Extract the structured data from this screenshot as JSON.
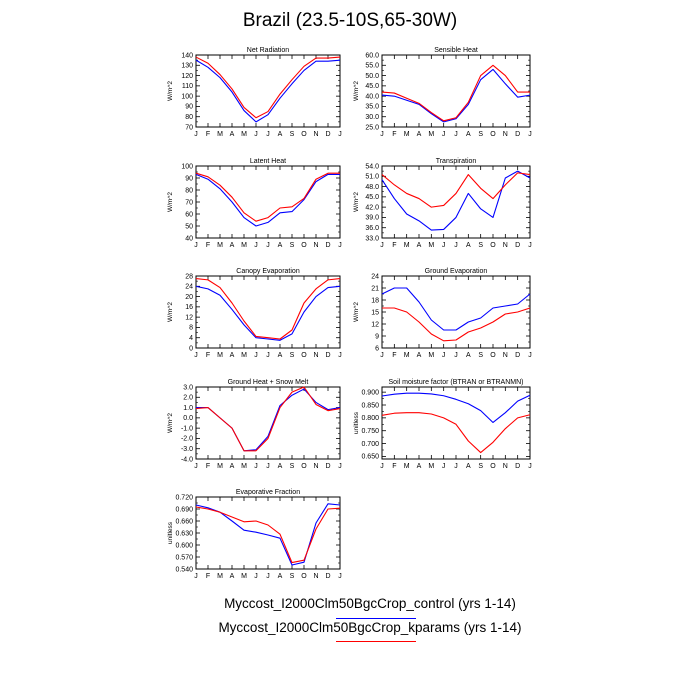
{
  "figure": {
    "title": "Brazil (23.5-10S,65-30W)",
    "legend": [
      {
        "label": "Myccost_I2000Clm50BgcCrop_control (yrs 1-14)",
        "color": "#0000ff"
      },
      {
        "label": "Myccost_I2000Clm50BgcCrop_kparams (yrs 1-14)",
        "color": "#ff0000"
      }
    ]
  },
  "chart_data": [
    {
      "type": "line",
      "title": "Net Radiation",
      "ylabel": "W/m^2",
      "categories": [
        "J",
        "F",
        "M",
        "A",
        "M",
        "J",
        "J",
        "A",
        "S",
        "O",
        "N",
        "D",
        "J"
      ],
      "ylim": [
        70,
        140
      ],
      "yticks": [
        "70",
        "80",
        "90",
        "100",
        "110",
        "120",
        "130",
        "140"
      ],
      "yticks_values": [
        70,
        80,
        90,
        100,
        110,
        120,
        130,
        140
      ],
      "series": [
        {
          "name": "Myccost_I2000Clm50BgcCrop_control (yrs 1-14)",
          "color": "#0000ff",
          "values": [
            135,
            128,
            118,
            104,
            86,
            75,
            82,
            98,
            112,
            125,
            134,
            134,
            135
          ]
        },
        {
          "name": "Myccost_I2000Clm50BgcCrop_kparams (yrs 1-14)",
          "color": "#ff0000",
          "values": [
            138,
            132,
            121,
            107,
            89,
            79,
            85,
            102,
            116,
            129,
            137,
            137,
            138
          ]
        }
      ]
    },
    {
      "type": "line",
      "title": "Sensible Heat",
      "ylabel": "W/m^2",
      "categories": [
        "J",
        "F",
        "M",
        "A",
        "M",
        "J",
        "J",
        "A",
        "S",
        "O",
        "N",
        "D",
        "J"
      ],
      "ylim": [
        25,
        60
      ],
      "yticks": [
        "25.0",
        "30.0",
        "35.0",
        "40.0",
        "45.0",
        "50.0",
        "55.0",
        "60.0"
      ],
      "yticks_values": [
        25,
        30,
        35,
        40,
        45,
        50,
        55,
        60
      ],
      "series": [
        {
          "name": "Myccost_I2000Clm50BgcCrop_control (yrs 1-14)",
          "color": "#0000ff",
          "values": [
            40.5,
            40,
            38,
            36,
            31.5,
            27.5,
            29,
            36,
            48,
            53,
            46,
            39.5,
            40.5
          ]
        },
        {
          "name": "Myccost_I2000Clm50BgcCrop_kparams (yrs 1-14)",
          "color": "#ff0000",
          "values": [
            42,
            41.5,
            39,
            36.5,
            32,
            28,
            29.5,
            37,
            50,
            55,
            50,
            42,
            42
          ]
        }
      ]
    },
    {
      "type": "line",
      "title": "Latent Heat",
      "ylabel": "W/m^2",
      "categories": [
        "J",
        "F",
        "M",
        "A",
        "M",
        "J",
        "J",
        "A",
        "S",
        "O",
        "N",
        "D",
        "J"
      ],
      "ylim": [
        40,
        100
      ],
      "yticks": [
        "40",
        "50",
        "60",
        "70",
        "80",
        "90",
        "100"
      ],
      "yticks_values": [
        40,
        50,
        60,
        70,
        80,
        90,
        100
      ],
      "series": [
        {
          "name": "Myccost_I2000Clm50BgcCrop_control (yrs 1-14)",
          "color": "#0000ff",
          "values": [
            93,
            89,
            81,
            70,
            57,
            50,
            53,
            61,
            62,
            72,
            87,
            93,
            93
          ]
        },
        {
          "name": "Myccost_I2000Clm50BgcCrop_kparams (yrs 1-14)",
          "color": "#ff0000",
          "values": [
            94,
            91,
            84,
            74,
            61,
            54,
            57,
            65,
            66,
            73,
            89,
            94,
            94
          ]
        }
      ]
    },
    {
      "type": "line",
      "title": "Transpiration",
      "ylabel": "W/m^2",
      "categories": [
        "J",
        "F",
        "M",
        "A",
        "M",
        "J",
        "J",
        "A",
        "S",
        "O",
        "N",
        "D",
        "J"
      ],
      "ylim": [
        33,
        54
      ],
      "yticks": [
        "33.0",
        "36.0",
        "39.0",
        "42.0",
        "45.0",
        "48.0",
        "51.0",
        "54.0"
      ],
      "yticks_values": [
        33,
        36,
        39,
        42,
        45,
        48,
        51,
        54
      ],
      "series": [
        {
          "name": "Myccost_I2000Clm50BgcCrop_control (yrs 1-14)",
          "color": "#0000ff",
          "values": [
            50,
            44.5,
            40,
            38,
            35.3,
            35.5,
            39,
            46,
            41.5,
            39,
            50.5,
            52.5,
            50.5
          ]
        },
        {
          "name": "Myccost_I2000Clm50BgcCrop_kparams (yrs 1-14)",
          "color": "#ff0000",
          "values": [
            51.5,
            48.5,
            46,
            44.5,
            42,
            42.5,
            46,
            51.5,
            47.5,
            44.5,
            48.5,
            52,
            51.5
          ]
        }
      ]
    },
    {
      "type": "line",
      "title": "Canopy Evaporation",
      "ylabel": "W/m^2",
      "categories": [
        "J",
        "F",
        "M",
        "A",
        "M",
        "J",
        "J",
        "A",
        "S",
        "O",
        "N",
        "D",
        "J"
      ],
      "ylim": [
        0,
        28
      ],
      "yticks": [
        "0",
        "4",
        "8",
        "12",
        "16",
        "20",
        "24",
        "28"
      ],
      "yticks_values": [
        0,
        4,
        8,
        12,
        16,
        20,
        24,
        28
      ],
      "series": [
        {
          "name": "Myccost_I2000Clm50BgcCrop_control (yrs 1-14)",
          "color": "#0000ff",
          "values": [
            24,
            23,
            20.5,
            15,
            9,
            4,
            3.5,
            3,
            5.5,
            14,
            20,
            23.5,
            24
          ]
        },
        {
          "name": "Myccost_I2000Clm50BgcCrop_kparams (yrs 1-14)",
          "color": "#ff0000",
          "values": [
            27,
            26.5,
            23.5,
            17.5,
            10.5,
            4.5,
            4,
            3.5,
            7,
            17.5,
            23,
            26.5,
            27
          ]
        }
      ]
    },
    {
      "type": "line",
      "title": "Ground Evaporation",
      "ylabel": "W/m^2",
      "categories": [
        "J",
        "F",
        "M",
        "A",
        "M",
        "J",
        "J",
        "A",
        "S",
        "O",
        "N",
        "D",
        "J"
      ],
      "ylim": [
        6,
        24
      ],
      "yticks": [
        "6",
        "9",
        "12",
        "15",
        "18",
        "21",
        "24"
      ],
      "yticks_values": [
        6,
        9,
        12,
        15,
        18,
        21,
        24
      ],
      "series": [
        {
          "name": "Myccost_I2000Clm50BgcCrop_control (yrs 1-14)",
          "color": "#0000ff",
          "values": [
            19.5,
            21,
            21,
            17.5,
            13,
            10.5,
            10.5,
            12.5,
            13.5,
            16,
            16.5,
            17,
            19.5
          ]
        },
        {
          "name": "Myccost_I2000Clm50BgcCrop_kparams (yrs 1-14)",
          "color": "#ff0000",
          "values": [
            16,
            16,
            15,
            12.5,
            9.5,
            7.8,
            8,
            10,
            11,
            12.5,
            14.5,
            15,
            16
          ]
        }
      ]
    },
    {
      "type": "line",
      "title": "Ground Heat + Snow Melt",
      "ylabel": "W/m^2",
      "categories": [
        "J",
        "F",
        "M",
        "A",
        "M",
        "J",
        "J",
        "A",
        "S",
        "O",
        "N",
        "D",
        "J"
      ],
      "ylim": [
        -4,
        3
      ],
      "yticks": [
        "-4.0",
        "-3.0",
        "-2.0",
        "-1.0",
        "0.0",
        "1.0",
        "2.0",
        "3.0"
      ],
      "yticks_values": [
        -4,
        -3,
        -2,
        -1,
        0,
        1,
        2,
        3
      ],
      "series": [
        {
          "name": "Myccost_I2000Clm50BgcCrop_control (yrs 1-14)",
          "color": "#0000ff",
          "values": [
            1,
            1,
            0,
            -1,
            -3.2,
            -3.1,
            -1.8,
            1.2,
            2.2,
            2.8,
            1.5,
            0.8,
            1
          ]
        },
        {
          "name": "Myccost_I2000Clm50BgcCrop_kparams (yrs 1-14)",
          "color": "#ff0000",
          "values": [
            0.9,
            1,
            0,
            -1,
            -3.2,
            -3.2,
            -2,
            1,
            2.5,
            3,
            1.3,
            0.7,
            0.9
          ]
        }
      ]
    },
    {
      "type": "line",
      "title": "Soil moisture factor (BTRAN or BTRANMN)",
      "ylabel": "unitless",
      "categories": [
        "J",
        "F",
        "M",
        "A",
        "M",
        "J",
        "J",
        "A",
        "S",
        "O",
        "N",
        "D",
        "J"
      ],
      "ylim": [
        0.64,
        0.92
      ],
      "yticks": [
        "0.650",
        "0.700",
        "0.750",
        "0.800",
        "0.850",
        "0.900"
      ],
      "yticks_values": [
        0.65,
        0.7,
        0.75,
        0.8,
        0.85,
        0.9
      ],
      "series": [
        {
          "name": "Myccost_I2000Clm50BgcCrop_control (yrs 1-14)",
          "color": "#0000ff",
          "values": [
            0.885,
            0.892,
            0.896,
            0.896,
            0.893,
            0.886,
            0.872,
            0.855,
            0.828,
            0.782,
            0.82,
            0.865,
            0.888
          ]
        },
        {
          "name": "Myccost_I2000Clm50BgcCrop_kparams (yrs 1-14)",
          "color": "#ff0000",
          "values": [
            0.81,
            0.818,
            0.82,
            0.82,
            0.815,
            0.8,
            0.775,
            0.71,
            0.665,
            0.705,
            0.758,
            0.8,
            0.812
          ]
        }
      ]
    },
    {
      "type": "line",
      "title": "Evaporative Fraction",
      "ylabel": "unitless",
      "categories": [
        "J",
        "F",
        "M",
        "A",
        "M",
        "J",
        "J",
        "A",
        "S",
        "O",
        "N",
        "D",
        "J"
      ],
      "ylim": [
        0.54,
        0.72
      ],
      "yticks": [
        "0.540",
        "0.570",
        "0.600",
        "0.630",
        "0.660",
        "0.690",
        "0.720"
      ],
      "yticks_values": [
        0.54,
        0.57,
        0.6,
        0.63,
        0.66,
        0.69,
        0.72
      ],
      "series": [
        {
          "name": "Myccost_I2000Clm50BgcCrop_control (yrs 1-14)",
          "color": "#0000ff",
          "values": [
            0.7,
            0.693,
            0.682,
            0.66,
            0.637,
            0.632,
            0.625,
            0.617,
            0.55,
            0.557,
            0.655,
            0.703,
            0.7
          ]
        },
        {
          "name": "Myccost_I2000Clm50BgcCrop_kparams (yrs 1-14)",
          "color": "#ff0000",
          "values": [
            0.695,
            0.69,
            0.682,
            0.67,
            0.658,
            0.66,
            0.65,
            0.627,
            0.556,
            0.562,
            0.64,
            0.69,
            0.692
          ]
        }
      ]
    }
  ]
}
